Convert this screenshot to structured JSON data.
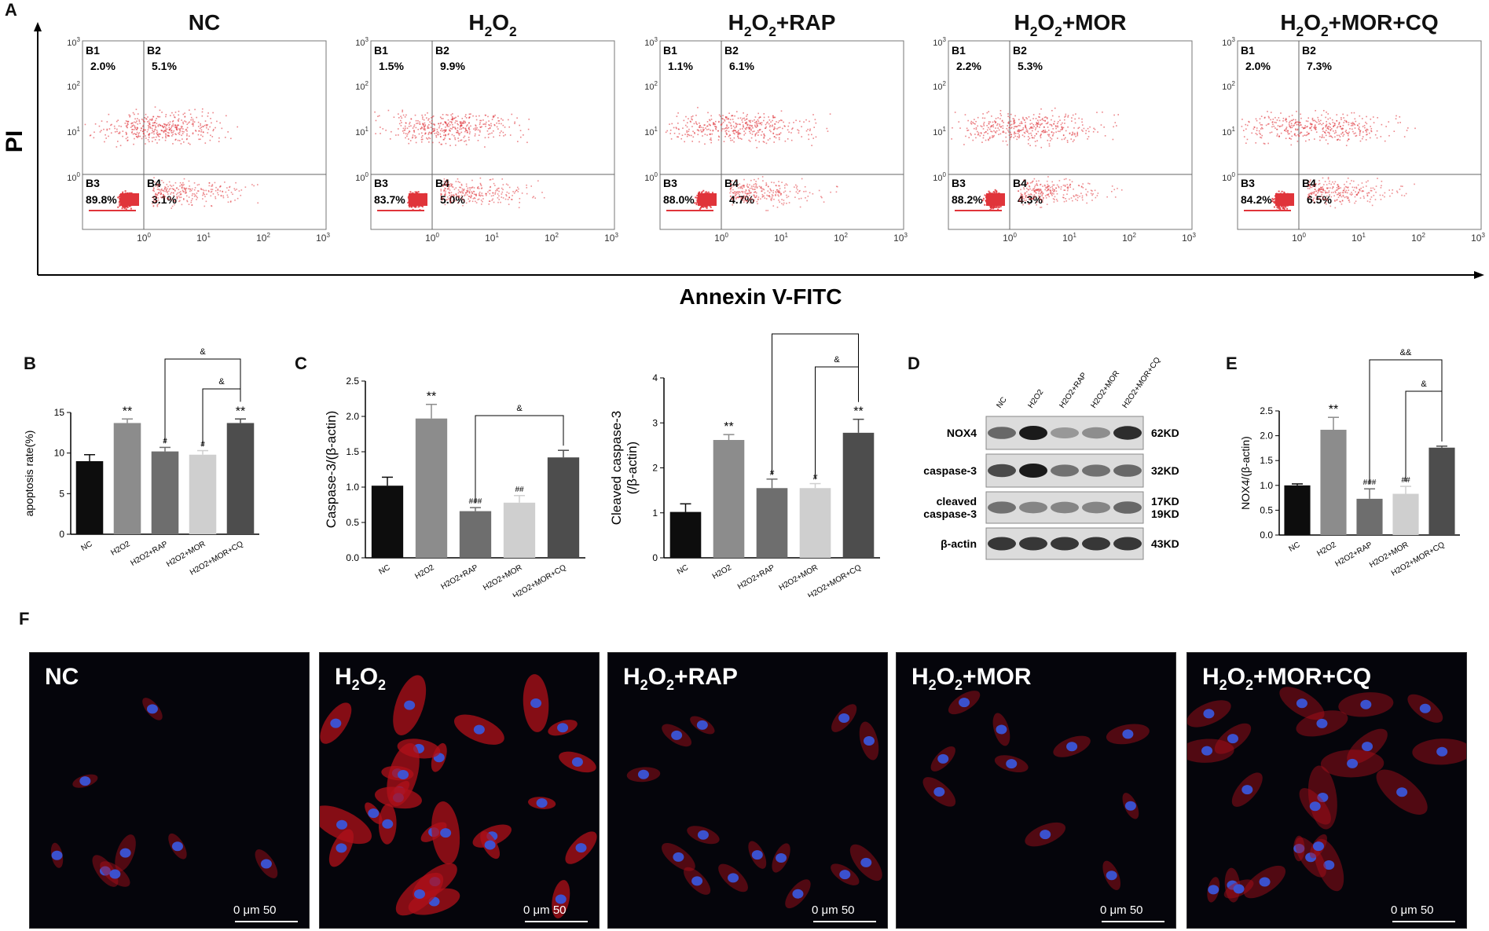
{
  "panels": {
    "a": "A",
    "b": "B",
    "c": "C",
    "d": "D",
    "e": "E",
    "f": "F"
  },
  "flow": {
    "y_axis_title": "PI",
    "x_axis_title": "Annexin V-FITC",
    "tick_exp": [
      "0",
      "1",
      "2",
      "3"
    ],
    "quadrant_names": [
      "B1",
      "B2",
      "B3",
      "B4"
    ],
    "plots": [
      {
        "title_parts": [
          "NC"
        ],
        "b1": "2.0%",
        "b2": "5.1%",
        "b3": "89.8%",
        "b4": "3.1%"
      },
      {
        "title_parts": [
          "H",
          "2",
          "O",
          "2"
        ],
        "b1": "1.5%",
        "b2": "9.9%",
        "b3": "83.7%",
        "b4": "5.0%"
      },
      {
        "title_parts": [
          "H",
          "2",
          "O",
          "2",
          "+RAP"
        ],
        "b1": "1.1%",
        "b2": "6.1%",
        "b3": "88.0%",
        "b4": "4.7%"
      },
      {
        "title_parts": [
          "H",
          "2",
          "O",
          "2",
          "+MOR"
        ],
        "b1": "2.2%",
        "b2": "5.3%",
        "b3": "88.2%",
        "b4": "4.3%"
      },
      {
        "title_parts": [
          "H",
          "2",
          "O",
          "2",
          "+MOR+CQ"
        ],
        "b1": "2.0%",
        "b2": "7.3%",
        "b3": "84.2%",
        "b4": "6.5%"
      }
    ]
  },
  "western": {
    "lanes": [
      "NC",
      "H2O2",
      "H2O2+RAP",
      "H2O2+MOR",
      "H2O2+MOR+CQ"
    ],
    "rows": [
      {
        "label": "NOX4",
        "kd": "62KD"
      },
      {
        "label": "caspase-3",
        "kd": "32KD"
      },
      {
        "label": "cleaved\ncaspase-3",
        "kd": "17KD\n19KD"
      },
      {
        "label": "β-actin",
        "kd": "43KD"
      }
    ]
  },
  "micrographs": {
    "scale_text": "0   μm   50",
    "labels": [
      [
        "NC"
      ],
      [
        "H",
        "2",
        "O",
        "2"
      ],
      [
        "H",
        "2",
        "O",
        "2",
        "+RAP"
      ],
      [
        "H",
        "2",
        "O",
        "2",
        "+MOR"
      ],
      [
        "H",
        "2",
        "O",
        "2",
        "+MOR+CQ"
      ]
    ]
  },
  "chart_data": [
    {
      "type": "bar",
      "panel": "B",
      "categories": [
        "NC",
        "H2O2",
        "H2O2+RAP",
        "H2O2+MOR",
        "H2O2+MOR+CQ"
      ],
      "values": [
        9.0,
        13.7,
        10.2,
        9.8,
        13.7
      ],
      "errors": [
        0.8,
        0.5,
        0.5,
        0.5,
        0.5
      ],
      "ylabel": "apoptosis rate(%)",
      "ylim": [
        0,
        15
      ],
      "yticks": [
        0,
        5,
        10,
        15
      ],
      "annotations": [
        "",
        "**",
        "#",
        "#",
        "**"
      ],
      "brackets": [
        {
          "from": "H2O2+MOR",
          "to": "H2O2+MOR+CQ",
          "label": "&"
        },
        {
          "from": "H2O2+RAP",
          "to": "H2O2+MOR+CQ",
          "label": "&"
        }
      ],
      "colors": [
        "#0d0d0d",
        "#8c8c8c",
        "#6e6e6e",
        "#cfcfcf",
        "#4d4d4d"
      ]
    },
    {
      "type": "bar",
      "panel": "C",
      "categories": [
        "NC",
        "H2O2",
        "H2O2+RAP",
        "H2O2+MOR",
        "H2O2+MOR+CQ"
      ],
      "values": [
        1.02,
        1.97,
        0.66,
        0.78,
        1.42
      ],
      "errors": [
        0.12,
        0.2,
        0.05,
        0.1,
        0.1
      ],
      "ylabel": "Caspase-3/(β-actin)",
      "ylim": [
        0,
        2.5
      ],
      "yticks": [
        0,
        0.5,
        1.0,
        1.5,
        2.0,
        2.5
      ],
      "annotations": [
        "",
        "**",
        "###",
        "##",
        ""
      ],
      "brackets": [
        {
          "from": "H2O2+RAP",
          "to": "H2O2+MOR+CQ",
          "label": "&"
        }
      ],
      "colors": [
        "#0d0d0d",
        "#8c8c8c",
        "#6e6e6e",
        "#cfcfcf",
        "#4d4d4d"
      ]
    },
    {
      "type": "bar",
      "panel": "C",
      "categories": [
        "NC",
        "H2O2",
        "H2O2+RAP",
        "H2O2+MOR",
        "H2O2+MOR+CQ"
      ],
      "values": [
        1.02,
        2.62,
        1.55,
        1.55,
        2.78
      ],
      "errors": [
        0.18,
        0.12,
        0.2,
        0.1,
        0.3
      ],
      "ylabel": "Cleaved caspase-3\n(/β-actin)",
      "ylim": [
        0,
        4
      ],
      "yticks": [
        0,
        1,
        2,
        3,
        4
      ],
      "annotations": [
        "",
        "**",
        "#",
        "#",
        "**"
      ],
      "brackets": [
        {
          "from": "H2O2+MOR",
          "to": "H2O2+MOR+CQ",
          "label": "&"
        },
        {
          "from": "H2O2+RAP",
          "to": "H2O2+MOR+CQ",
          "label": "&"
        }
      ],
      "colors": [
        "#0d0d0d",
        "#8c8c8c",
        "#6e6e6e",
        "#cfcfcf",
        "#4d4d4d"
      ]
    },
    {
      "type": "bar",
      "panel": "E",
      "categories": [
        "NC",
        "H2O2",
        "H2O2+RAP",
        "H2O2+MOR",
        "H2O2+MOR+CQ"
      ],
      "values": [
        1.0,
        2.12,
        0.73,
        0.83,
        1.76
      ],
      "errors": [
        0.03,
        0.25,
        0.2,
        0.15,
        0.03
      ],
      "ylabel": "NOX4/(β-actin)",
      "ylim": [
        0,
        2.5
      ],
      "yticks": [
        0,
        0.5,
        1.0,
        1.5,
        2.0,
        2.5
      ],
      "annotations": [
        "",
        "**",
        "###",
        "##",
        ""
      ],
      "brackets": [
        {
          "from": "H2O2+MOR",
          "to": "H2O2+MOR+CQ",
          "label": "&"
        },
        {
          "from": "H2O2+RAP",
          "to": "H2O2+MOR+CQ",
          "label": "&&"
        }
      ],
      "colors": [
        "#0d0d0d",
        "#8c8c8c",
        "#6e6e6e",
        "#cfcfcf",
        "#4d4d4d"
      ]
    }
  ]
}
